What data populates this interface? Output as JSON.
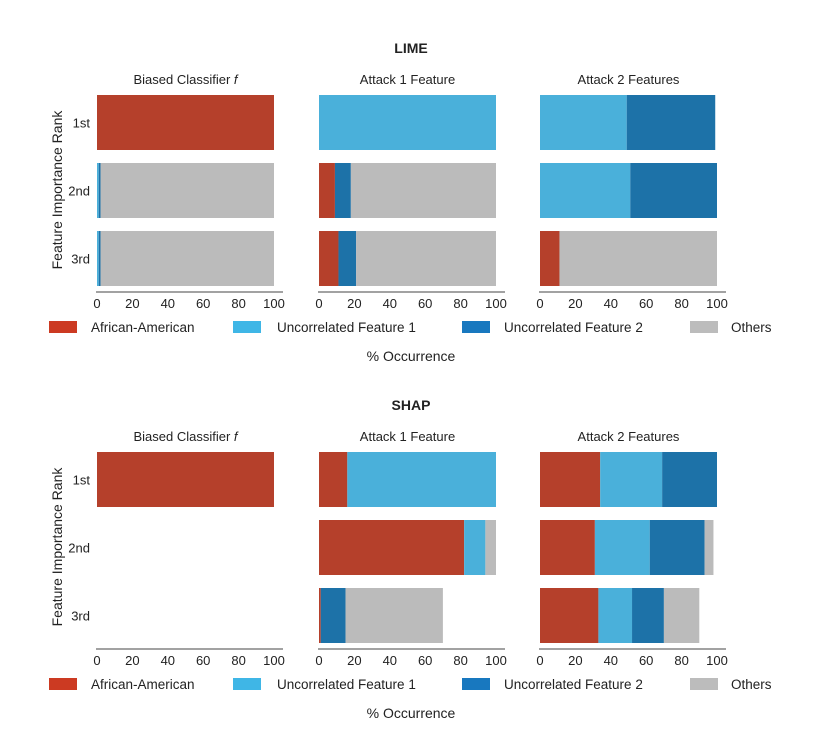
{
  "chart_data": [
    {
      "type": "bar",
      "orientation": "horizontal",
      "stacked": true,
      "title": "LIME",
      "ylabel": "Feature Importance Rank",
      "xlabel": "% Occurrence",
      "categories": [
        "1st",
        "2nd",
        "3rd"
      ],
      "xlim": [
        0,
        100
      ],
      "xticks": [
        0,
        20,
        40,
        60,
        80,
        100
      ],
      "panels": [
        {
          "title": "Biased Classifier f",
          "rows": [
            {
              "rank": "1st",
              "segments": [
                100,
                0,
                0,
                0
              ]
            },
            {
              "rank": "2nd",
              "segments": [
                0,
                1,
                1,
                98
              ]
            },
            {
              "rank": "3rd",
              "segments": [
                0,
                1,
                1,
                98
              ]
            }
          ]
        },
        {
          "title": "Attack 1 Feature",
          "rows": [
            {
              "rank": "1st",
              "segments": [
                0,
                100,
                0,
                0
              ]
            },
            {
              "rank": "2nd",
              "segments": [
                9,
                0,
                9,
                82
              ]
            },
            {
              "rank": "3rd",
              "segments": [
                11,
                0,
                10,
                79
              ]
            }
          ]
        },
        {
          "title": "Attack 2 Features",
          "rows": [
            {
              "rank": "1st",
              "segments": [
                0,
                49,
                50,
                0
              ]
            },
            {
              "rank": "2nd",
              "segments": [
                0,
                51,
                49,
                0
              ]
            },
            {
              "rank": "3rd",
              "segments": [
                11,
                0,
                0,
                89
              ]
            }
          ]
        }
      ]
    },
    {
      "type": "bar",
      "orientation": "horizontal",
      "stacked": true,
      "title": "SHAP",
      "ylabel": "Feature Importance Rank",
      "xlabel": "% Occurrence",
      "categories": [
        "1st",
        "2nd",
        "3rd"
      ],
      "xlim": [
        0,
        100
      ],
      "xticks": [
        0,
        20,
        40,
        60,
        80,
        100
      ],
      "panels": [
        {
          "title": "Biased Classifier f",
          "rows": [
            {
              "rank": "1st",
              "segments": [
                100,
                0,
                0,
                0
              ]
            },
            {
              "rank": "2nd",
              "segments": [
                0,
                0,
                0,
                0
              ]
            },
            {
              "rank": "3rd",
              "segments": [
                0,
                0,
                0,
                0
              ]
            }
          ]
        },
        {
          "title": "Attack 1 Feature",
          "rows": [
            {
              "rank": "1st",
              "segments": [
                16,
                84,
                0,
                0
              ]
            },
            {
              "rank": "2nd",
              "segments": [
                82,
                12,
                0,
                6
              ]
            },
            {
              "rank": "3rd",
              "segments": [
                1,
                0,
                14,
                55
              ]
            }
          ]
        },
        {
          "title": "Attack 2 Features",
          "rows": [
            {
              "rank": "1st",
              "segments": [
                34,
                35,
                31,
                0
              ]
            },
            {
              "rank": "2nd",
              "segments": [
                31,
                31,
                31,
                5
              ]
            },
            {
              "rank": "3rd",
              "segments": [
                33,
                19,
                18,
                20
              ]
            }
          ]
        }
      ]
    }
  ],
  "legend": {
    "labels": [
      "African-American",
      "Uncorrelated Feature 1",
      "Uncorrelated Feature 2",
      "Others"
    ],
    "colors": [
      "#b5402b",
      "#4ab0da",
      "#1d72a8",
      "#bbbbbb"
    ],
    "legend_swatch_colors": [
      "#cc3a22",
      "#3fb6e6",
      "#1878bf",
      "#bcbcbc"
    ]
  }
}
